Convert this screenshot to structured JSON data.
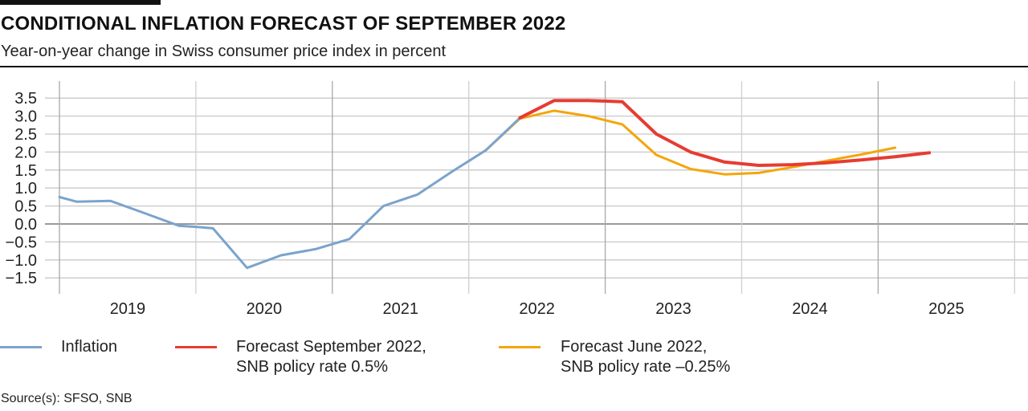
{
  "header": {
    "title": "CONDITIONAL INFLATION FORECAST OF SEPTEMBER 2022",
    "subtitle": "Year-on-year change in Swiss consumer price index in percent"
  },
  "legend": [
    {
      "label": "Inflation",
      "color": "#7ba3cc"
    },
    {
      "label": "Forecast September 2022,\nSNB policy rate 0.5%",
      "color": "#e63c32"
    },
    {
      "label": "Forecast June 2022,\nSNB policy rate –0.25%",
      "color": "#f5a50a"
    }
  ],
  "source": "Source(s): SFSO, SNB",
  "chart_data": {
    "type": "line",
    "title": "CONDITIONAL INFLATION FORECAST OF SEPTEMBER 2022",
    "subtitle": "Year-on-year change in Swiss consumer price index in percent",
    "xlabel": "",
    "ylabel": "",
    "xlim": [
      2019,
      2026
    ],
    "ylim": [
      -1.5,
      3.5
    ],
    "yticks": [
      3.5,
      3.0,
      2.5,
      2.0,
      1.5,
      1.0,
      0.5,
      0.0,
      -0.5,
      -1.0,
      -1.5
    ],
    "ytick_labels": [
      "3.5",
      "3.0",
      "2.5",
      "2.0",
      "1.5",
      "1.0",
      "0.5",
      "0.0",
      "−0.5",
      "−1.0",
      "−1.5"
    ],
    "xtick_labels": [
      "2019",
      "2020",
      "2021",
      "2022",
      "2023",
      "2024",
      "2025"
    ],
    "grid": true,
    "legend_position": "bottom",
    "series": [
      {
        "name": "Inflation",
        "color": "#7ba3cc",
        "x": [
          2019.0,
          2019.125,
          2019.375,
          2019.625,
          2019.875,
          2020.0,
          2020.125,
          2020.375,
          2020.625,
          2020.875,
          2021.125,
          2021.375,
          2021.625,
          2021.875,
          2022.125,
          2022.375
        ],
        "values": [
          0.75,
          0.62,
          0.64,
          0.3,
          -0.05,
          -0.08,
          -0.12,
          -1.22,
          -0.87,
          -0.7,
          -0.42,
          0.5,
          0.82,
          1.45,
          2.05,
          2.95
        ]
      },
      {
        "name": "Forecast September 2022, SNB policy rate 0.5%",
        "color": "#e63c32",
        "x": [
          2022.375,
          2022.625,
          2022.875,
          2023.125,
          2023.375,
          2023.625,
          2023.875,
          2024.125,
          2024.375,
          2024.625,
          2024.875,
          2025.125,
          2025.375
        ],
        "values": [
          2.95,
          3.43,
          3.43,
          3.4,
          2.5,
          2.0,
          1.72,
          1.63,
          1.65,
          1.7,
          1.78,
          1.87,
          1.98
        ]
      },
      {
        "name": "Forecast June 2022, SNB policy rate –0.25%",
        "color": "#f5a50a",
        "x": [
          2022.125,
          2022.375,
          2022.625,
          2022.875,
          2023.125,
          2023.375,
          2023.625,
          2023.875,
          2024.125,
          2024.375,
          2024.625,
          2024.875,
          2025.125
        ],
        "values": [
          2.05,
          2.93,
          3.15,
          3.0,
          2.77,
          1.92,
          1.53,
          1.38,
          1.42,
          1.58,
          1.76,
          1.93,
          2.12
        ]
      }
    ]
  }
}
